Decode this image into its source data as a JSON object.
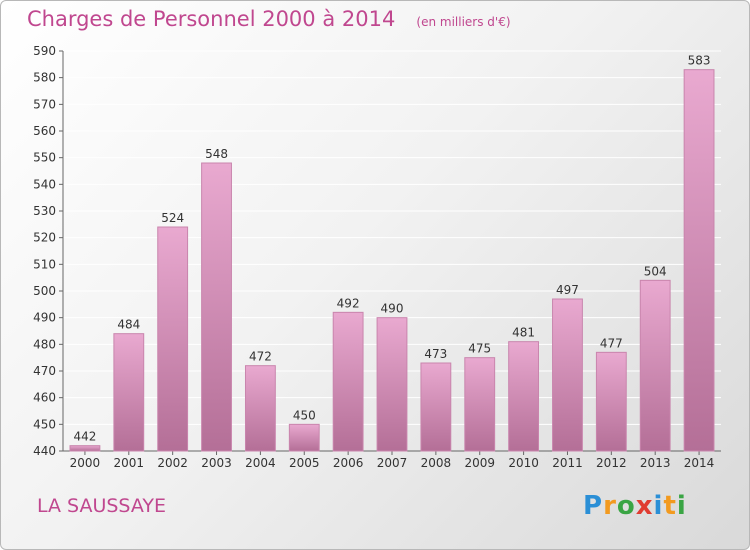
{
  "title": "Charges de Personnel 2000 à 2014",
  "subtitle": "(en milliers d'€)",
  "commune": "LA SAUSSAYE",
  "logo": {
    "text": "Proxiti",
    "letters": [
      {
        "ch": "P",
        "color": "#2b8fd6"
      },
      {
        "ch": "r",
        "color": "#f29a1f"
      },
      {
        "ch": "o",
        "color": "#3aa544"
      },
      {
        "ch": "x",
        "color": "#e03c31"
      },
      {
        "ch": "i",
        "color": "#2b8fd6"
      },
      {
        "ch": "t",
        "color": "#f29a1f"
      },
      {
        "ch": "i",
        "color": "#3aa544"
      }
    ]
  },
  "colors": {
    "bar_top": "#e9a9d0",
    "bar_bottom": "#b46f97",
    "bar_edge": "#c985ad",
    "title": "#c0478f",
    "grid": "#ffffff"
  },
  "chart_data": {
    "type": "bar",
    "categories": [
      "2000",
      "2001",
      "2002",
      "2003",
      "2004",
      "2005",
      "2006",
      "2007",
      "2008",
      "2009",
      "2010",
      "2011",
      "2012",
      "2013",
      "2014"
    ],
    "values": [
      442,
      484,
      524,
      548,
      472,
      450,
      492,
      490,
      473,
      475,
      481,
      497,
      477,
      504,
      583
    ],
    "ylim": [
      440,
      590
    ],
    "yticks": [
      440,
      450,
      460,
      470,
      480,
      490,
      500,
      510,
      520,
      530,
      540,
      550,
      560,
      570,
      580,
      590
    ],
    "xlabel": "",
    "ylabel": "",
    "grid": true
  }
}
